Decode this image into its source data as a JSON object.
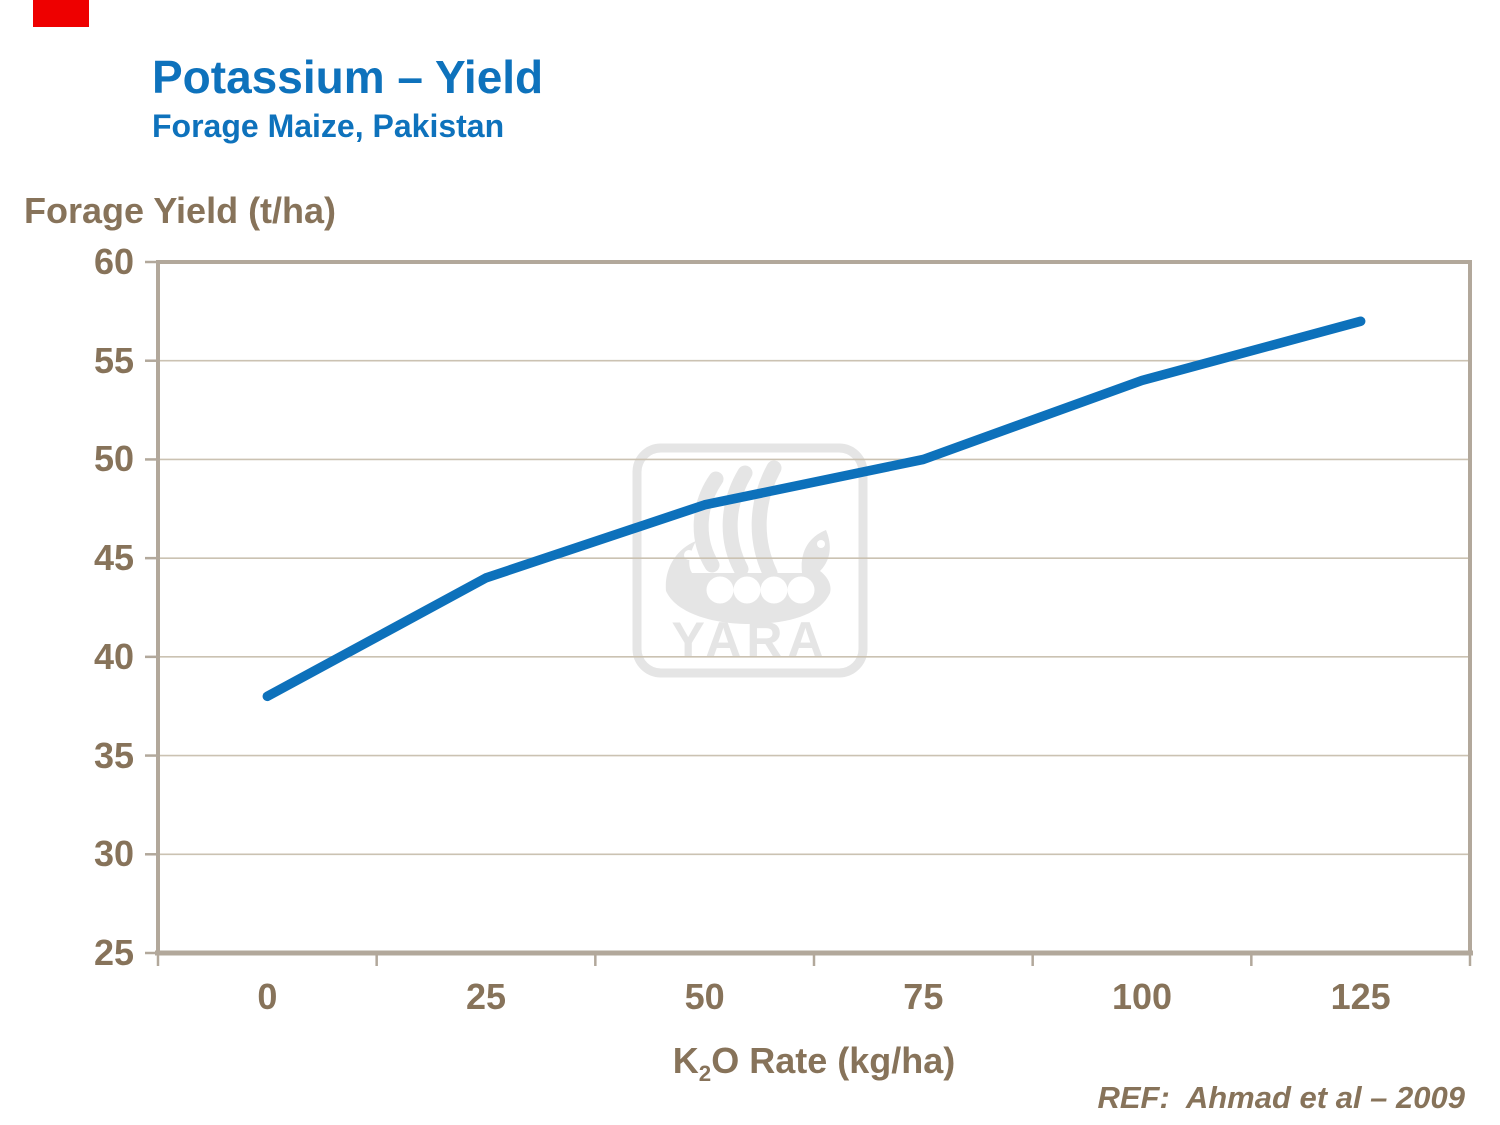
{
  "slide": {
    "title": "Potassium – Yield",
    "subtitle": "Forage Maize, Pakistan",
    "reference": "REF:  Ahmad et al – 2009"
  },
  "axes": {
    "y_title": "Forage Yield (t/ha)",
    "x_title_prefix": "K",
    "x_title_sub": "2",
    "x_title_rest": "O Rate (kg/ha)"
  },
  "watermark": {
    "label": "YARA"
  },
  "colors": {
    "title_blue": "#0e72bc",
    "line_blue": "#0d71bb",
    "text_brown": "#87735a",
    "grid_line": "#cbc2b2",
    "plot_border": "#b2a89b",
    "watermark_gray": "#e5e5e5",
    "marker_red": "#ee0000"
  },
  "chart_data": {
    "type": "line",
    "title": "Potassium – Yield",
    "subtitle": "Forage Maize, Pakistan",
    "xlabel": "K2O Rate (kg/ha)",
    "ylabel": "Forage Yield (t/ha)",
    "x": [
      0,
      25,
      50,
      75,
      100,
      125
    ],
    "series": [
      {
        "name": "Forage Yield",
        "values": [
          38,
          44,
          47.7,
          50,
          54,
          57
        ]
      }
    ],
    "xticks": [
      "0",
      "25",
      "50",
      "75",
      "100",
      "125"
    ],
    "yticks": [
      "25",
      "30",
      "35",
      "40",
      "45",
      "50",
      "55",
      "60"
    ],
    "ylim": [
      25,
      60
    ],
    "xlim_categories": 6,
    "grid": "horizontal-only",
    "legend": "none",
    "annotation": "REF:  Ahmad et al – 2009"
  }
}
